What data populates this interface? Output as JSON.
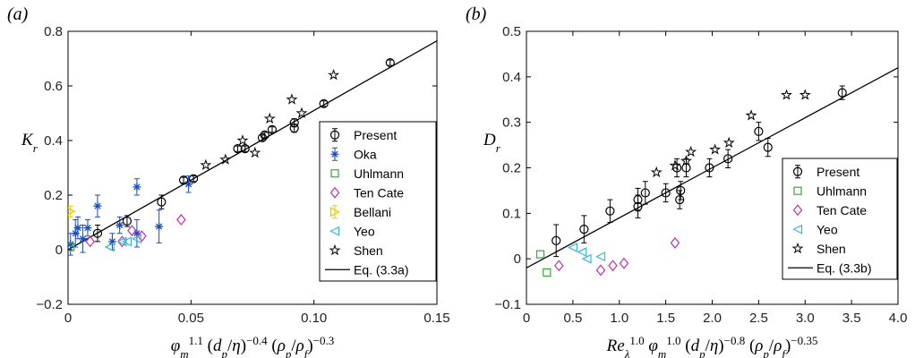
{
  "colors": {
    "Present": "#000000",
    "Oka": "#1f4fb4",
    "Uhlmann": "#3aa63a",
    "Ten Cate": "#c030a8",
    "Bellani": "#e6d000",
    "Yeo": "#33b9d6",
    "Shen": "#000000",
    "fit": "#000000"
  },
  "chart_data": [
    {
      "type": "scatter",
      "panel_label": "(a)",
      "ylabel": "K_r",
      "xlabel": "φ_m^1.1 (d_p/η)^−0.4 (ρ_p/ρ_f)^−0.3",
      "xlim": [
        0,
        0.15
      ],
      "ylim": [
        -0.2,
        0.8
      ],
      "xticks": [
        0,
        0.05,
        0.1,
        0.15
      ],
      "xtick_labels": [
        "0",
        "0.05",
        "0.10",
        "0.15"
      ],
      "yticks": [
        -0.2,
        0,
        0.2,
        0.4,
        0.6,
        0.8
      ],
      "ytick_labels": [
        "−0.2",
        "0",
        "0.2",
        "0.4",
        "0.6",
        "0.8"
      ],
      "legend_position": "right",
      "fit": {
        "label": "Eq. (3.3a)",
        "slope": 5.1,
        "intercept": 0.0
      },
      "series": [
        {
          "name": "Present",
          "marker": "circle",
          "points": [
            {
              "x": 0.012,
              "y": 0.06,
              "err": 0.03
            },
            {
              "x": 0.024,
              "y": 0.105,
              "err": 0.02
            },
            {
              "x": 0.038,
              "y": 0.175,
              "err": 0.025
            },
            {
              "x": 0.047,
              "y": 0.255,
              "err": 0.01
            },
            {
              "x": 0.051,
              "y": 0.26,
              "err": 0.01
            },
            {
              "x": 0.069,
              "y": 0.37,
              "err": 0.01
            },
            {
              "x": 0.072,
              "y": 0.37,
              "err": 0.01
            },
            {
              "x": 0.079,
              "y": 0.41,
              "err": 0.01
            },
            {
              "x": 0.08,
              "y": 0.42,
              "err": 0.01
            },
            {
              "x": 0.083,
              "y": 0.44,
              "err": 0.01
            },
            {
              "x": 0.092,
              "y": 0.445,
              "err": 0.015
            },
            {
              "x": 0.092,
              "y": 0.465,
              "err": 0.015
            },
            {
              "x": 0.104,
              "y": 0.535,
              "err": 0.01
            },
            {
              "x": 0.131,
              "y": 0.685,
              "err": 0.01
            }
          ]
        },
        {
          "name": "Oka",
          "marker": "asterisk",
          "points": [
            {
              "x": 0.001,
              "y": 0.02,
              "err": 0.04
            },
            {
              "x": 0.003,
              "y": 0.06,
              "err": 0.05
            },
            {
              "x": 0.004,
              "y": 0.08,
              "err": 0.04
            },
            {
              "x": 0.006,
              "y": 0.04,
              "err": 0.05
            },
            {
              "x": 0.008,
              "y": 0.08,
              "err": 0.03
            },
            {
              "x": 0.012,
              "y": 0.16,
              "err": 0.04
            },
            {
              "x": 0.018,
              "y": 0.03,
              "err": 0.03
            },
            {
              "x": 0.021,
              "y": 0.09,
              "err": 0.03
            },
            {
              "x": 0.028,
              "y": 0.23,
              "err": 0.03
            },
            {
              "x": 0.028,
              "y": 0.06,
              "err": 0.05
            },
            {
              "x": 0.037,
              "y": 0.085,
              "err": 0.06
            },
            {
              "x": 0.049,
              "y": 0.24,
              "err": 0.03
            }
          ]
        },
        {
          "name": "Uhlmann",
          "marker": "square",
          "points": [
            {
              "x": 0.001,
              "y": 0.01
            }
          ]
        },
        {
          "name": "Ten Cate",
          "marker": "diamond",
          "points": [
            {
              "x": 0.009,
              "y": 0.03
            },
            {
              "x": 0.022,
              "y": 0.03
            },
            {
              "x": 0.026,
              "y": 0.07
            },
            {
              "x": 0.03,
              "y": 0.05
            },
            {
              "x": 0.046,
              "y": 0.11
            }
          ]
        },
        {
          "name": "Bellani",
          "marker": "triangle-right",
          "points": [
            {
              "x": 0.001,
              "y": 0.14,
              "err": 0.02
            }
          ]
        },
        {
          "name": "Yeo",
          "marker": "triangle-left",
          "points": [
            {
              "x": 0.017,
              "y": 0.01
            },
            {
              "x": 0.022,
              "y": 0.03
            },
            {
              "x": 0.024,
              "y": 0.03
            },
            {
              "x": 0.028,
              "y": 0.04
            }
          ]
        },
        {
          "name": "Shen",
          "marker": "star",
          "points": [
            {
              "x": 0.056,
              "y": 0.31
            },
            {
              "x": 0.064,
              "y": 0.33
            },
            {
              "x": 0.071,
              "y": 0.4
            },
            {
              "x": 0.076,
              "y": 0.355
            },
            {
              "x": 0.082,
              "y": 0.48
            },
            {
              "x": 0.091,
              "y": 0.55
            },
            {
              "x": 0.095,
              "y": 0.5
            },
            {
              "x": 0.108,
              "y": 0.64
            }
          ]
        }
      ]
    },
    {
      "type": "scatter",
      "panel_label": "(b)",
      "ylabel": "D_r",
      "xlabel": "Re_λ^1.0 φ_m^1.0 (d_p/η)^−0.8 (ρ_p/ρ_f)^−0.35",
      "xlim": [
        0,
        4.0
      ],
      "ylim": [
        -0.1,
        0.5
      ],
      "xticks": [
        0,
        0.5,
        1,
        1.5,
        2,
        2.5,
        3,
        3.5,
        4
      ],
      "xtick_labels": [
        "0",
        "0.5",
        "1.0",
        "1.5",
        "2.0",
        "2.5",
        "3.0",
        "3.5",
        "4.0"
      ],
      "yticks": [
        -0.1,
        0,
        0.1,
        0.2,
        0.3,
        0.4,
        0.5
      ],
      "ytick_labels": [
        "−0.1",
        "0",
        "0.1",
        "0.2",
        "0.3",
        "0.4",
        "0.5"
      ],
      "legend_position": "right",
      "fit": {
        "label": "Eq. (3.3b)",
        "slope": 0.11,
        "intercept": -0.02
      },
      "series": [
        {
          "name": "Present",
          "marker": "circle",
          "points": [
            {
              "x": 0.32,
              "y": 0.04,
              "err": 0.035
            },
            {
              "x": 0.62,
              "y": 0.065,
              "err": 0.03
            },
            {
              "x": 0.9,
              "y": 0.105,
              "err": 0.025
            },
            {
              "x": 1.2,
              "y": 0.115,
              "err": 0.025
            },
            {
              "x": 1.2,
              "y": 0.13,
              "err": 0.025
            },
            {
              "x": 1.28,
              "y": 0.145,
              "err": 0.025
            },
            {
              "x": 1.5,
              "y": 0.145,
              "err": 0.02
            },
            {
              "x": 1.62,
              "y": 0.2,
              "err": 0.02
            },
            {
              "x": 1.65,
              "y": 0.13,
              "err": 0.02
            },
            {
              "x": 1.66,
              "y": 0.15,
              "err": 0.02
            },
            {
              "x": 1.72,
              "y": 0.2,
              "err": 0.02
            },
            {
              "x": 1.97,
              "y": 0.2,
              "err": 0.02
            },
            {
              "x": 2.17,
              "y": 0.22,
              "err": 0.02
            },
            {
              "x": 2.5,
              "y": 0.28,
              "err": 0.02
            },
            {
              "x": 2.6,
              "y": 0.245,
              "err": 0.02
            },
            {
              "x": 3.4,
              "y": 0.365,
              "err": 0.015
            }
          ]
        },
        {
          "name": "Uhlmann",
          "marker": "square",
          "points": [
            {
              "x": 0.15,
              "y": 0.01
            },
            {
              "x": 0.22,
              "y": -0.03
            }
          ]
        },
        {
          "name": "Ten Cate",
          "marker": "diamond",
          "points": [
            {
              "x": 0.35,
              "y": -0.015
            },
            {
              "x": 0.8,
              "y": -0.025
            },
            {
              "x": 0.93,
              "y": -0.015
            },
            {
              "x": 1.05,
              "y": -0.01
            },
            {
              "x": 1.6,
              "y": 0.035
            }
          ]
        },
        {
          "name": "Yeo",
          "marker": "triangle-left",
          "points": [
            {
              "x": 0.5,
              "y": 0.025
            },
            {
              "x": 0.6,
              "y": 0.015
            },
            {
              "x": 0.65,
              "y": 0.0
            },
            {
              "x": 0.8,
              "y": 0.005
            }
          ]
        },
        {
          "name": "Shen",
          "marker": "star",
          "points": [
            {
              "x": 1.4,
              "y": 0.19
            },
            {
              "x": 1.6,
              "y": 0.205
            },
            {
              "x": 1.72,
              "y": 0.215
            },
            {
              "x": 1.77,
              "y": 0.235
            },
            {
              "x": 2.03,
              "y": 0.24
            },
            {
              "x": 2.18,
              "y": 0.255
            },
            {
              "x": 2.42,
              "y": 0.315
            },
            {
              "x": 2.8,
              "y": 0.36
            },
            {
              "x": 3.0,
              "y": 0.36
            }
          ]
        }
      ]
    }
  ]
}
